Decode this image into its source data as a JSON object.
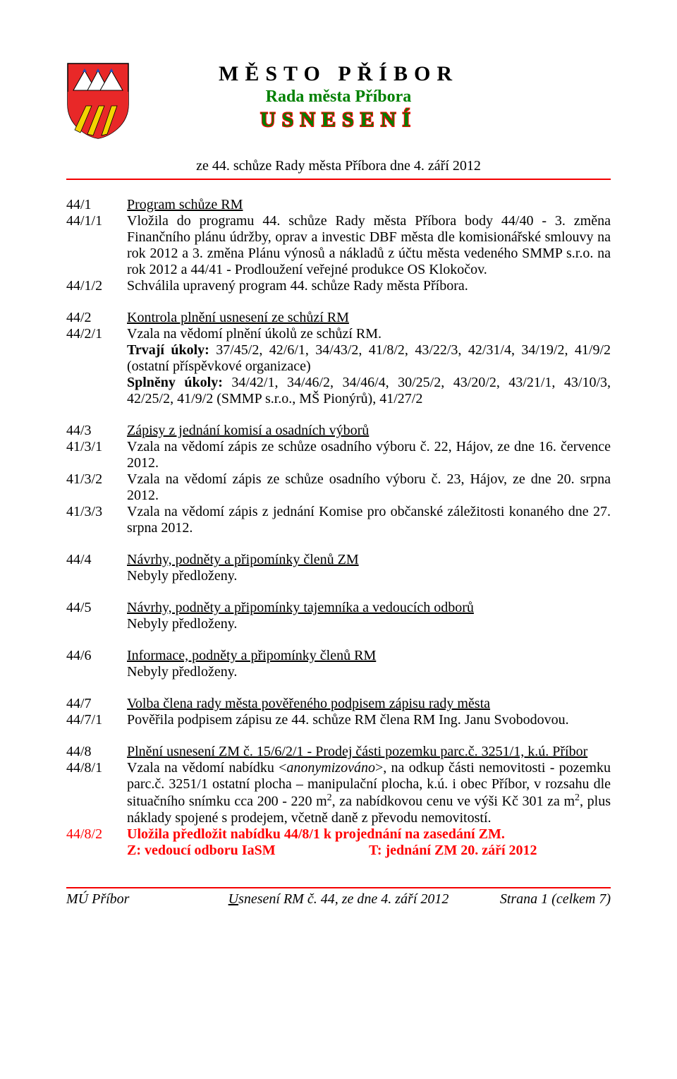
{
  "colors": {
    "accent_red": "#f40000",
    "title_green": "#008000",
    "body_red": "#ff0000",
    "coat_red": "#e82828",
    "coat_yellow": "#f3d400",
    "coat_white": "#ffffff",
    "coat_blue": "#1f4fb8",
    "background": "#ffffff",
    "text": "#000000"
  },
  "header": {
    "city": "MĚSTO PŘÍBOR",
    "council": "Rada města Příbora",
    "doc_type": "USNESENÍ",
    "meeting_line": "ze 44. schůze Rady města Příbora dne 4. září 2012"
  },
  "sections": [
    {
      "num": "44/1",
      "title": "Program schůze RM",
      "items": [
        {
          "num": "44/1/1",
          "text": "Vložila do programu 44. schůze Rady města Příbora body 44/40 - 3. změna Finančního plánu údržby, oprav a investic DBF města dle komisionářské smlouvy na rok 2012 a 3. změna Plánu výnosů a nákladů z účtu města vedeného SMMP s.r.o. na rok 2012 a 44/41 - Prodloužení veřejné produkce OS Klokočov."
        },
        {
          "num": "44/1/2",
          "text": "Schválila upravený program 44. schůze Rady města Příbora."
        }
      ]
    },
    {
      "num": "44/2",
      "title": "Kontrola plnění usnesení ze schůzí RM",
      "items": [
        {
          "num": "44/2/1",
          "html": "Vzala na vědomí plnění úkolů ze schůzí RM.<br><b>Trvají úkoly:</b> 37/45/2, 42/6/1, 34/43/2, 41/8/2, 43/22/3, 42/31/4, 34/19/2, 41/9/2 (ostatní příspěvkové organizace)<br><b>Splněny úkoly:</b> 34/42/1, 34/46/2, 34/46/4, 30/25/2, 43/20/2, 43/21/1, 43/10/3, 42/25/2, 41/9/2 (SMMP s.r.o., MŠ Pionýrů), 41/27/2"
        }
      ]
    },
    {
      "num": "44/3",
      "title": "Zápisy z jednání komisí a osadních výborů",
      "items": [
        {
          "num": "41/3/1",
          "text": "Vzala na vědomí zápis ze schůze osadního výboru č. 22, Hájov, ze dne 16. července 2012."
        },
        {
          "num": "41/3/2",
          "text": "Vzala na vědomí zápis ze schůze osadního výboru č. 23, Hájov, ze dne 20. srpna 2012."
        },
        {
          "num": "41/3/3",
          "text": "Vzala na vědomí zápis z jednání Komise pro občanské záležitosti konaného dne 27. srpna 2012."
        }
      ]
    },
    {
      "num": "44/4",
      "title": "Návrhy, podněty a připomínky členů ZM",
      "items": [
        {
          "num": "",
          "text": "Nebyly předloženy."
        }
      ]
    },
    {
      "num": "44/5",
      "title": "Návrhy, podněty a připomínky tajemníka a vedoucích odborů",
      "items": [
        {
          "num": "",
          "text": "Nebyly předloženy."
        }
      ]
    },
    {
      "num": "44/6",
      "title": "Informace, podněty a připomínky členů RM",
      "items": [
        {
          "num": "",
          "text": "Nebyly předloženy."
        }
      ]
    },
    {
      "num": "44/7",
      "title": "Volba člena rady města pověřeného podpisem zápisu rady města",
      "items": [
        {
          "num": "44/7/1",
          "text": "Pověřila podpisem zápisu ze 44. schůze RM člena RM Ing. Janu Svobodovou."
        }
      ]
    },
    {
      "num": "44/8",
      "title": "Plnění usnesení ZM č. 15/6/2/1 - Prodej části pozemku parc.č. 3251/1, k.ú. Příbor",
      "items": [
        {
          "num": "44/8/1",
          "html": "Vzala na vědomí nabídku &lt;<i>anonymizováno</i>&gt;, na odkup části nemovitosti - pozemku parc.č. 3251/1 ostatní plocha – manipulační plocha, k.ú. i obec Příbor, v rozsahu dle situačního snímku cca 200 - 220 m<span class=\"sup\">2</span>, za nabídkovou cenu ve výši Kč 301 za m<span class=\"sup\">2</span>, plus náklady spojené s  prodejem, včetně daně z převodu nemovitostí."
        },
        {
          "num": "44/8/2",
          "red": true,
          "html": "<b>Uložila předložit nabídku 44/8/1 k projednání na zasedání ZM.</b><div class=\"zt-row\"><span class=\"z\"><b>Z: vedoucí odboru IaSM</b></span><span class=\"t\"><b>T: jednání ZM 20. září 2012</b></span></div>"
        }
      ]
    }
  ],
  "footer": {
    "left": "MÚ Příbor",
    "center_prefix": "U",
    "center_rest": "snesení RM č. 44, ze dne 4. září 2012",
    "right": "Strana 1 (celkem 7)"
  }
}
